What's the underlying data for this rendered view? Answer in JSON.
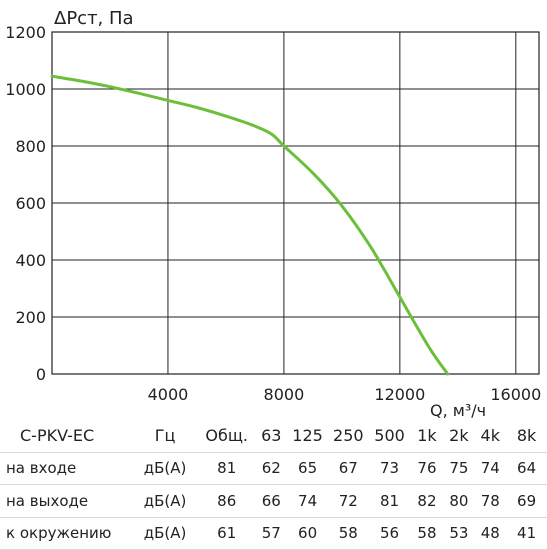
{
  "chart_data": {
    "type": "line",
    "ylabel": "ΔPст, Па",
    "xlabel": "Q, м³/ч",
    "xlim": [
      0,
      16800
    ],
    "ylim": [
      0,
      1200
    ],
    "x_ticks": [
      4000,
      8000,
      12000,
      16000
    ],
    "y_ticks": [
      0,
      200,
      400,
      600,
      800,
      1000,
      1200
    ],
    "grid": true,
    "line_color": "#6cbf3a",
    "series": [
      {
        "x": [
          0,
          1000,
          2000,
          3000,
          4000,
          5000,
          6000,
          7000,
          7600,
          8000,
          9000,
          10000,
          11000,
          12000,
          13000,
          13650
        ],
        "values": [
          1045,
          1028,
          1008,
          985,
          960,
          935,
          905,
          870,
          840,
          800,
          705,
          590,
          445,
          270,
          95,
          0
        ]
      }
    ]
  },
  "table": {
    "header": [
      "C-PKV-EC",
      "Гц",
      "Общ.",
      "63",
      "125",
      "250",
      "500",
      "1k",
      "2k",
      "4k",
      "8k"
    ],
    "rows": [
      [
        "на входе",
        "дБ(А)",
        "81",
        "62",
        "65",
        "67",
        "73",
        "76",
        "75",
        "74",
        "64"
      ],
      [
        "на выходе",
        "дБ(А)",
        "86",
        "66",
        "74",
        "72",
        "81",
        "82",
        "80",
        "78",
        "69"
      ],
      [
        "к окружению",
        "дБ(А)",
        "61",
        "57",
        "60",
        "58",
        "56",
        "58",
        "53",
        "48",
        "41"
      ]
    ]
  }
}
